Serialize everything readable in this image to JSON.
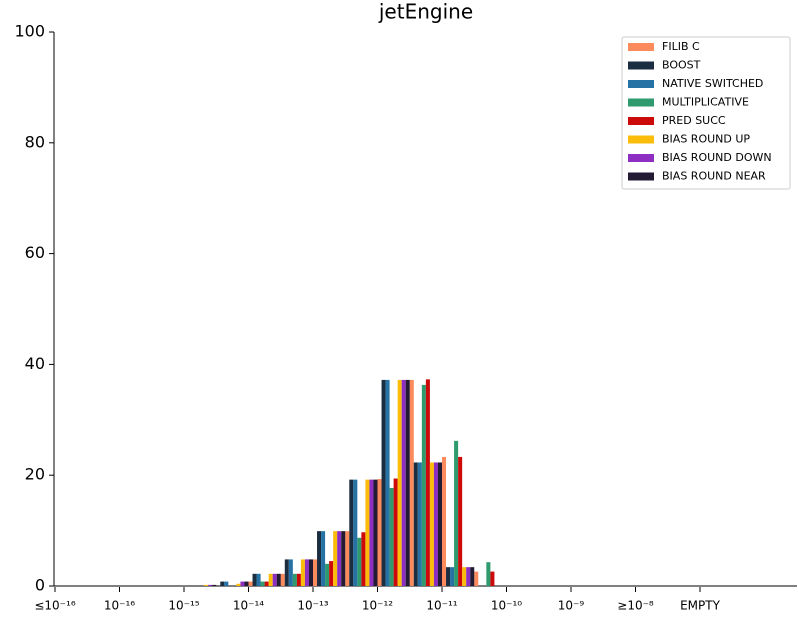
{
  "chart_data": {
    "type": "bar",
    "title": "jetEngine",
    "categories": [
      null,
      null,
      null,
      null,
      null,
      null,
      null,
      null,
      null,
      null,
      null,
      null,
      null,
      null,
      null,
      null,
      null,
      null,
      null,
      null,
      null,
      null,
      null
    ],
    "xlim": [
      0,
      23
    ],
    "xticks": [
      {
        "value": 0,
        "label": "≤10⁻¹⁶"
      },
      {
        "value": 2,
        "label": "10⁻¹⁶"
      },
      {
        "value": 4,
        "label": "10⁻¹⁵"
      },
      {
        "value": 6,
        "label": "10⁻¹⁴"
      },
      {
        "value": 8,
        "label": "10⁻¹³"
      },
      {
        "value": 10,
        "label": "10⁻¹²"
      },
      {
        "value": 12,
        "label": "10⁻¹¹"
      },
      {
        "value": 14,
        "label": "10⁻¹⁰"
      },
      {
        "value": 16,
        "label": "10⁻⁹"
      },
      {
        "value": 18,
        "label": "≥10⁻⁸"
      },
      {
        "value": 20,
        "label": "EMPTY"
      }
    ],
    "ylim": [
      0,
      100
    ],
    "yticks": [
      0,
      20,
      40,
      60,
      80,
      100
    ],
    "grid": false,
    "legend": "upper right",
    "series": [
      {
        "name": "FILIB C",
        "color": "#fb8a5c",
        "values": [
          0,
          0,
          0,
          0,
          0,
          0,
          0.8,
          2.2,
          4.8,
          9.9,
          19.3,
          37.2,
          23.3,
          2.6,
          0,
          0,
          0,
          0,
          0,
          0,
          0,
          0,
          0
        ]
      },
      {
        "name": "BOOST",
        "color": "#1b2d40",
        "values": [
          0,
          0,
          0,
          0,
          0,
          0.8,
          2.2,
          4.8,
          9.9,
          19.2,
          37.2,
          22.3,
          3.4,
          0,
          0,
          0,
          0,
          0,
          0,
          0,
          0,
          0,
          0
        ]
      },
      {
        "name": "NATIVE SWITCHED",
        "color": "#2672a4",
        "values": [
          0,
          0,
          0,
          0,
          0,
          0.8,
          2.2,
          4.8,
          9.9,
          19.2,
          37.2,
          22.3,
          3.4,
          0,
          0,
          0,
          0,
          0,
          0,
          0,
          0,
          0,
          0
        ]
      },
      {
        "name": "MULTIPLICATIVE",
        "color": "#2e9a6e",
        "values": [
          0,
          0,
          0,
          0,
          0,
          0,
          0.8,
          2.2,
          4.0,
          8.7,
          17.7,
          36.3,
          26.2,
          4.3,
          0,
          0,
          0,
          0,
          0,
          0,
          0,
          0,
          0
        ]
      },
      {
        "name": "PRED SUCC",
        "color": "#cc0a0a",
        "values": [
          0,
          0,
          0,
          0,
          0,
          0,
          0.8,
          2.2,
          4.5,
          9.7,
          19.4,
          37.3,
          23.3,
          2.6,
          0,
          0,
          0,
          0,
          0,
          0,
          0,
          0,
          0
        ]
      },
      {
        "name": "BIAS ROUND UP",
        "color": "#fbbc0a",
        "values": [
          0,
          0,
          0,
          0,
          0.2,
          0.4,
          2.2,
          4.8,
          9.9,
          19.2,
          37.2,
          22.3,
          3.4,
          0,
          0,
          0,
          0,
          0,
          0,
          0,
          0,
          0,
          0
        ]
      },
      {
        "name": "BIAS ROUND DOWN",
        "color": "#8c2fc2",
        "values": [
          0,
          0,
          0,
          0,
          0.2,
          0.8,
          2.2,
          4.8,
          9.9,
          19.2,
          37.2,
          22.3,
          3.4,
          0,
          0,
          0,
          0,
          0,
          0,
          0,
          0,
          0,
          0
        ]
      },
      {
        "name": "BIAS ROUND NEAR",
        "color": "#231a33",
        "values": [
          0,
          0,
          0,
          0,
          0.2,
          0.8,
          2.2,
          4.8,
          9.9,
          19.2,
          37.2,
          22.3,
          3.4,
          0,
          0,
          0,
          0,
          0,
          0,
          0,
          0,
          0,
          0
        ]
      }
    ]
  }
}
